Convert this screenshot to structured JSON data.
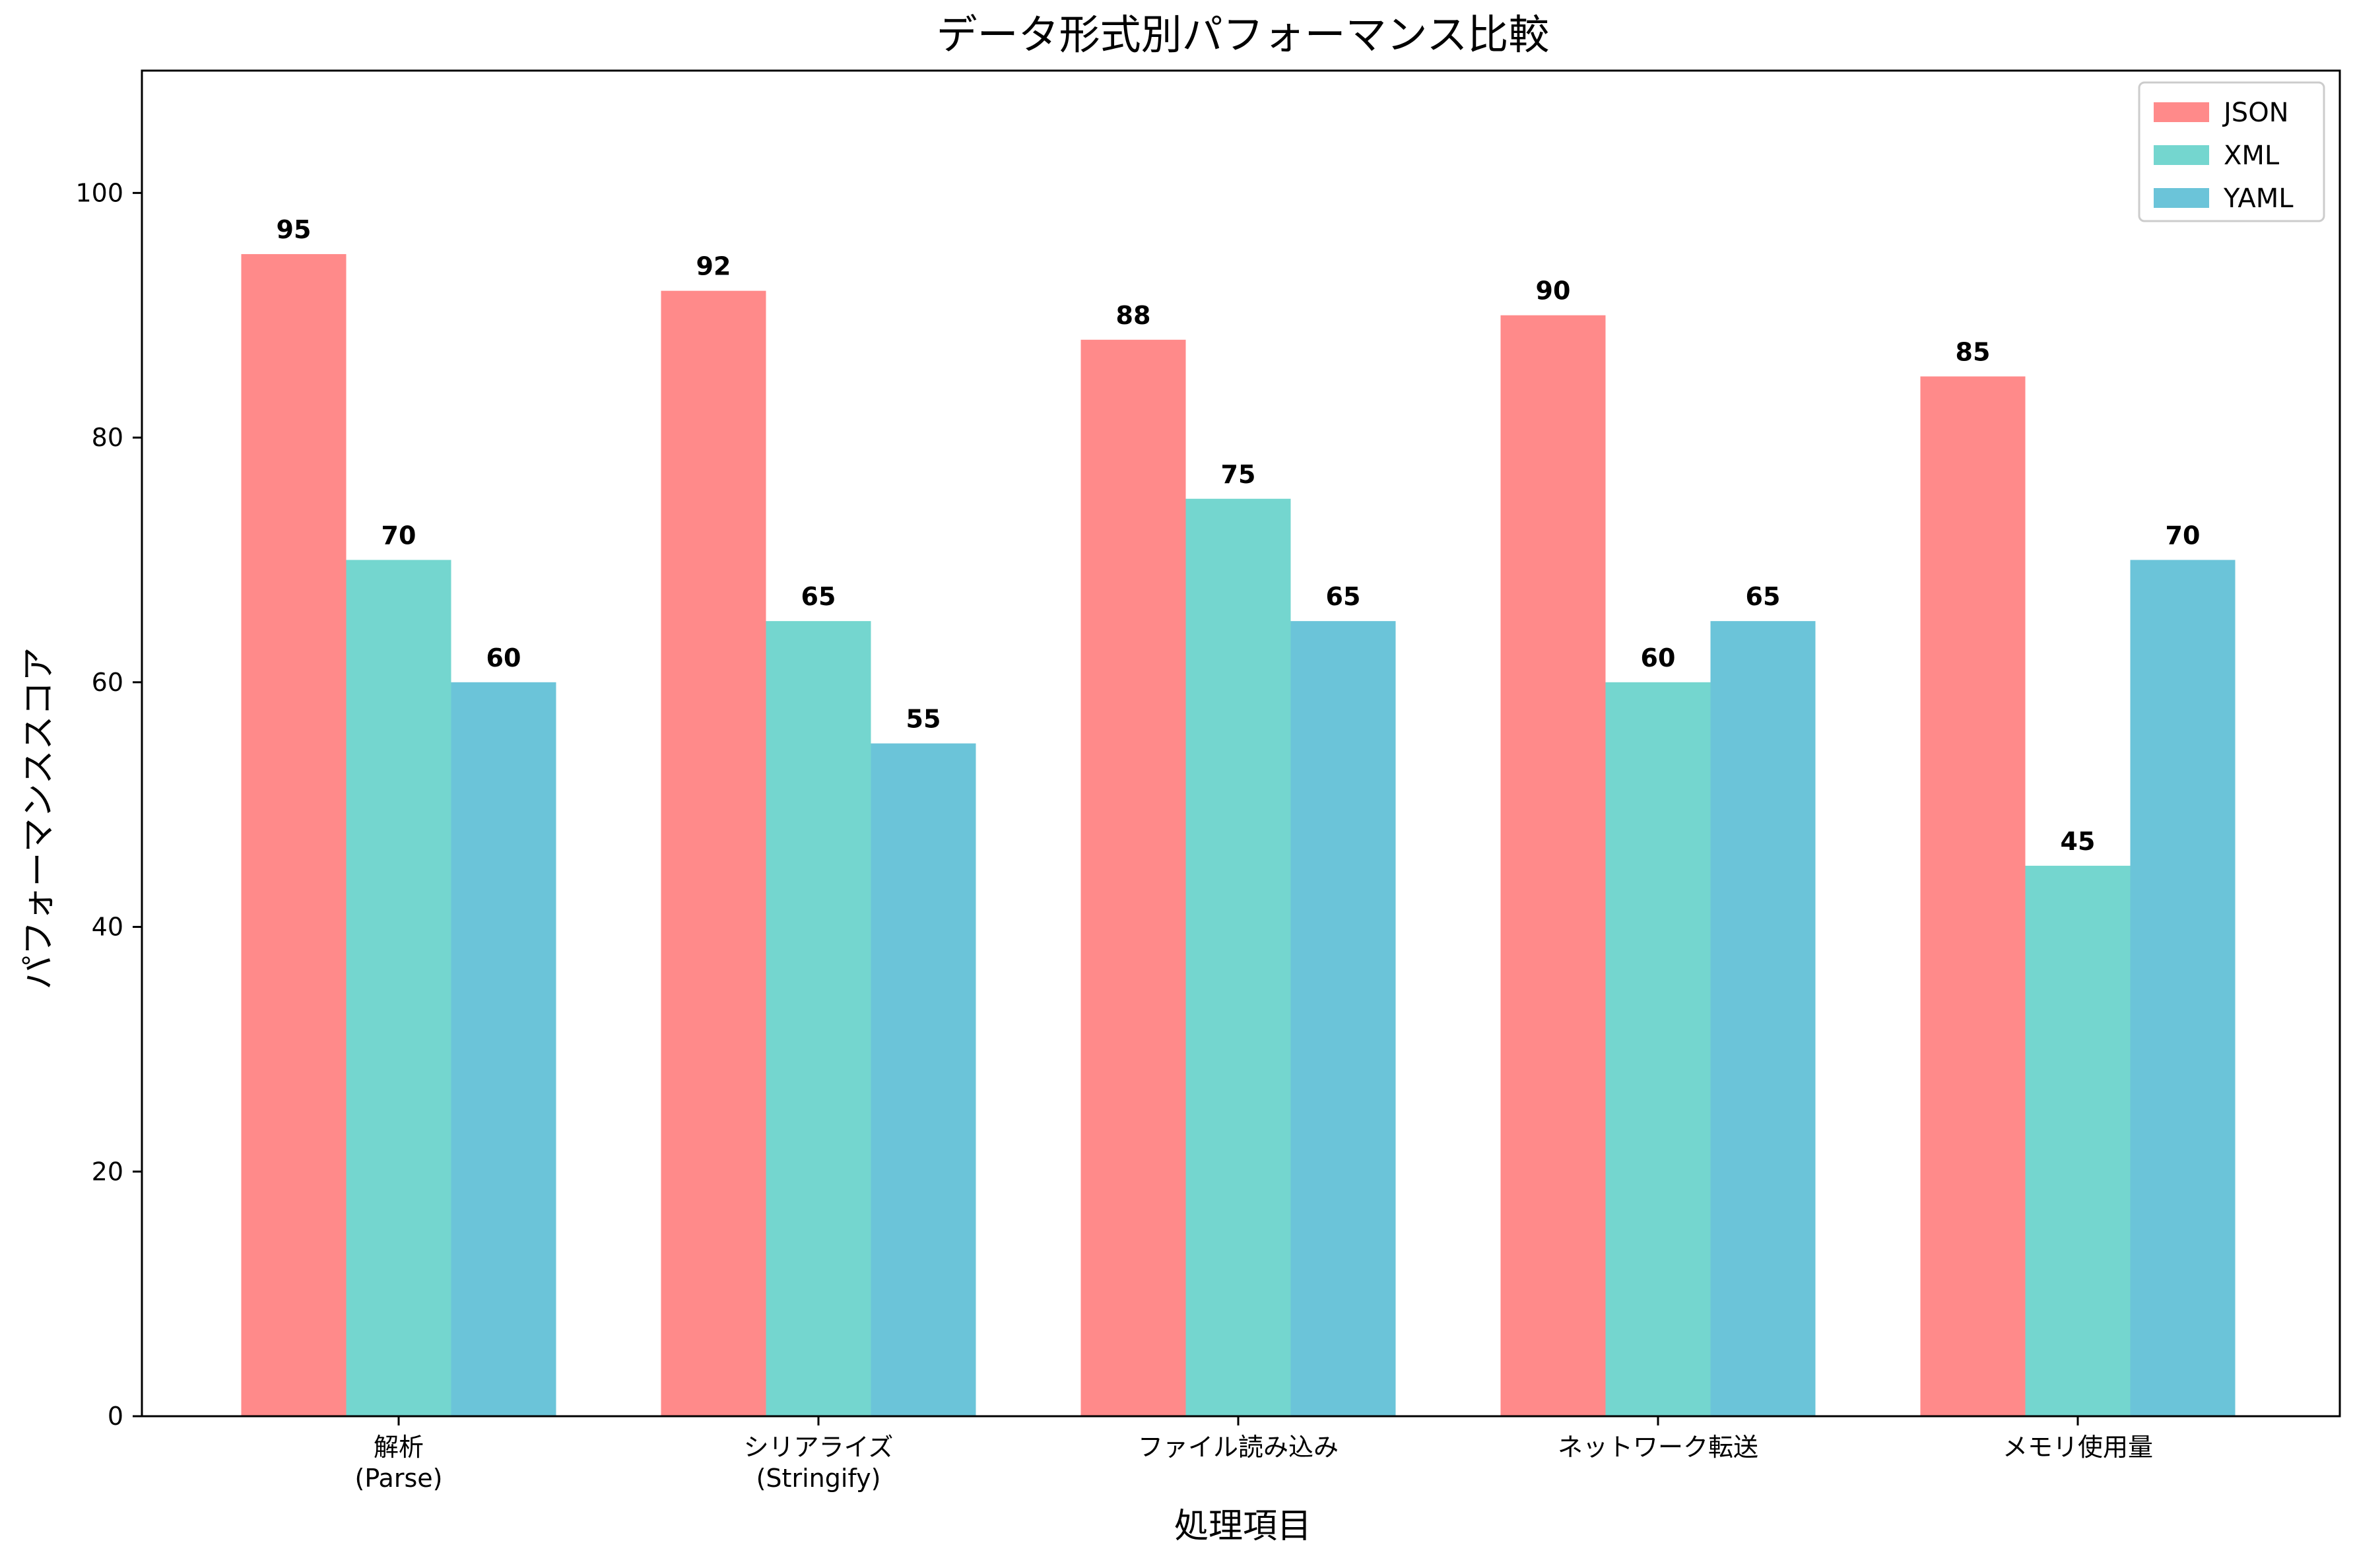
{
  "chart_data": {
    "type": "bar",
    "title": "データ形式別パフォーマンス比較",
    "xlabel": "処理項目",
    "ylabel": "パフォーマンススコア",
    "categories": [
      [
        "解析",
        "(Parse)"
      ],
      [
        "シリアライズ",
        "(Stringify)"
      ],
      [
        "ファイル読み込み"
      ],
      [
        "ネットワーク転送"
      ],
      [
        "メモリ使用量"
      ]
    ],
    "series": [
      {
        "name": "JSON",
        "color": "#FF8A8A",
        "values": [
          95,
          92,
          88,
          90,
          85
        ]
      },
      {
        "name": "XML",
        "color": "#74D6CF",
        "values": [
          70,
          65,
          75,
          60,
          45
        ]
      },
      {
        "name": "YAML",
        "color": "#6BC4D9",
        "values": [
          60,
          55,
          65,
          65,
          70
        ]
      }
    ],
    "ylim": [
      0,
      110
    ],
    "yticks": [
      0,
      20,
      40,
      60,
      80,
      100
    ],
    "grid": false,
    "legend_position": "top-right"
  }
}
